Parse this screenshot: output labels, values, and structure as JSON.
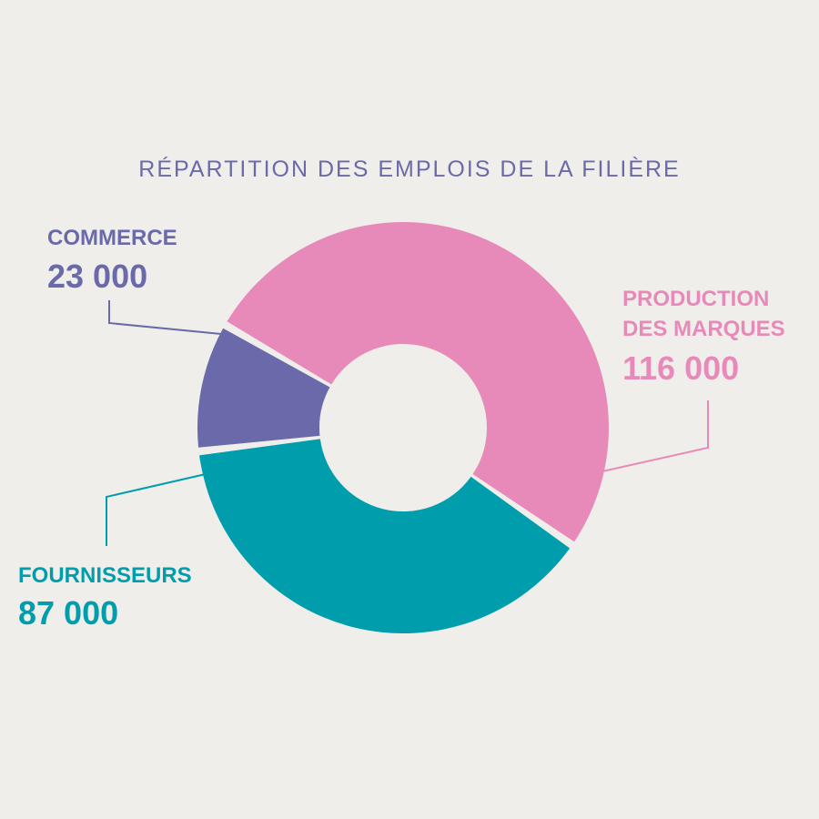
{
  "chart_data": {
    "type": "pie",
    "title": "RÉPARTITION DES EMPLOIS DE LA FILIÈRE",
    "slices": [
      {
        "label": "PRODUCTION\nDES MARQUES",
        "label_lines": [
          "PRODUCTION",
          "DES MARQUES"
        ],
        "value_text": "116 000",
        "value": 116000,
        "color": "#e88ab9"
      },
      {
        "label": "FOURNISSEURS",
        "label_lines": [
          "FOURNISSEURS"
        ],
        "value_text": "87 000",
        "value": 87000,
        "color": "#009dad"
      },
      {
        "label": "COMMERCE",
        "label_lines": [
          "COMMERCE"
        ],
        "value_text": "23 000",
        "value": 23000,
        "color": "#6a6aaa"
      }
    ],
    "legend": "none",
    "donut": true
  },
  "colors": {
    "background": "#f0eeea",
    "title": "#6a6aaa"
  }
}
